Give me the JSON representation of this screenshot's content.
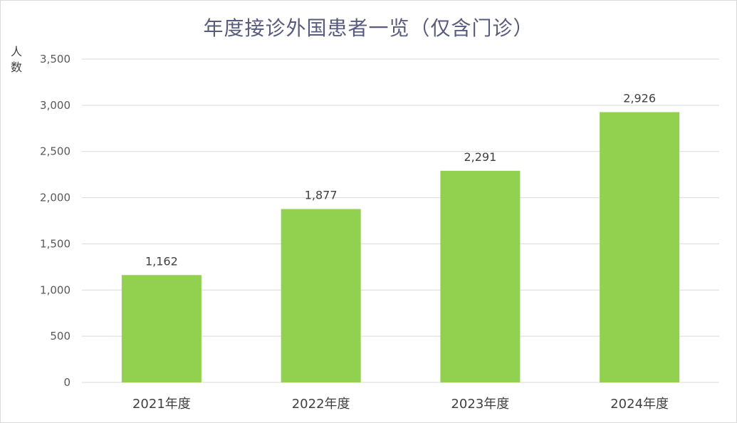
{
  "chart_data": {
    "type": "bar",
    "title": "年度接诊外国患者一览（仅含门诊）",
    "ylabel": "人数",
    "xlabel": "",
    "categories": [
      "2021年度",
      "2022年度",
      "2023年度",
      "2024年度"
    ],
    "values": [
      1162,
      1877,
      2291,
      2926
    ],
    "value_labels": [
      "1,162",
      "1,877",
      "2,291",
      "2,926"
    ],
    "ylim": [
      0,
      3500
    ],
    "yticks": [
      0,
      500,
      1000,
      1500,
      2000,
      2500,
      3000,
      3500
    ],
    "ytick_labels": [
      "0",
      "500",
      "1,000",
      "1,500",
      "2,000",
      "2,500",
      "3,000",
      "3,500"
    ],
    "grid": true,
    "legend": "none",
    "bar_color": "#92d050",
    "grid_color": "#d9d9d9"
  }
}
